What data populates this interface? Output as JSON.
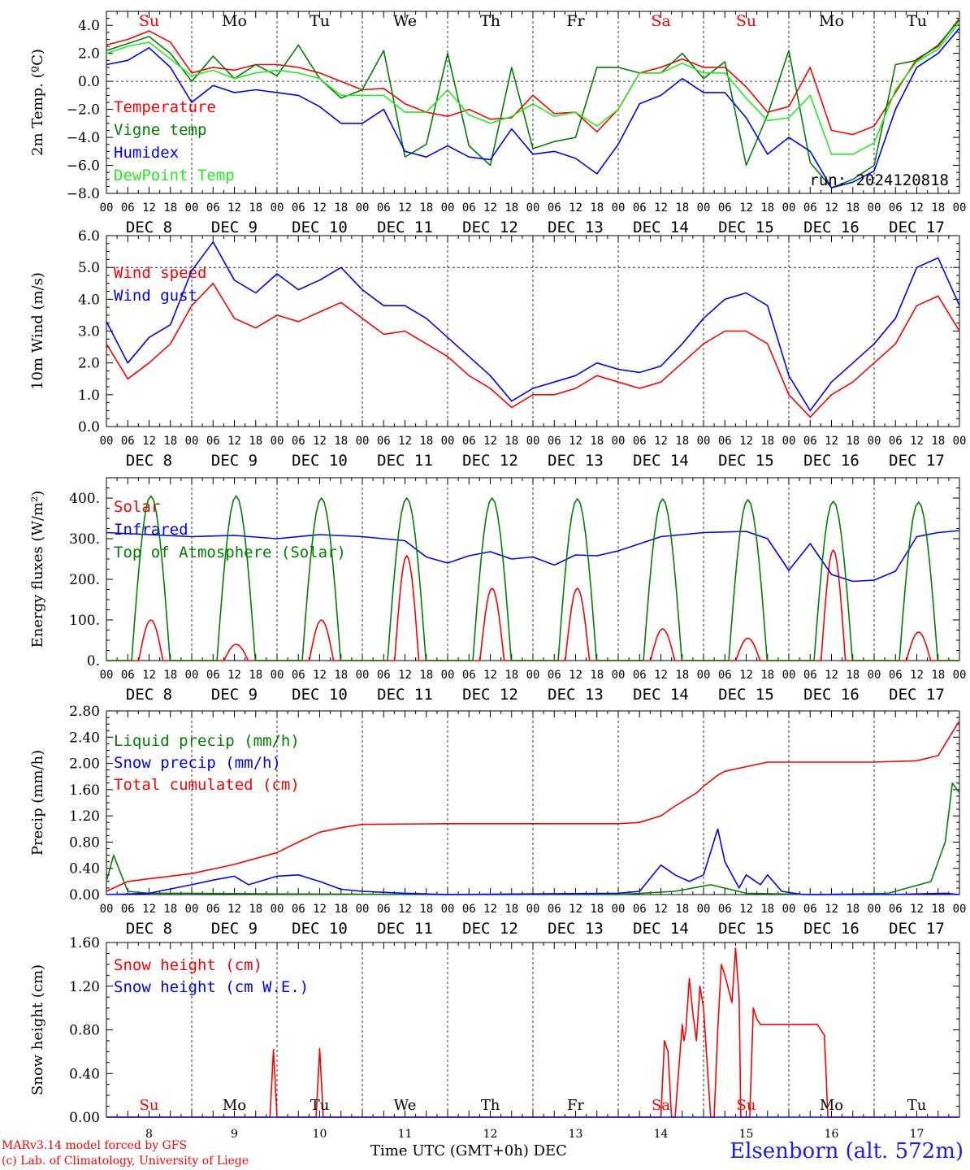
{
  "footer": {
    "credit_line1": "MARv3.14 model forced by GFS",
    "credit_line2": "(c) Lab. of Climatology, University of Liege",
    "xlabel": "Time UTC (GMT+0h) DEC",
    "station": "Elsenborn (alt. 572m)",
    "run": "run: 2024120818"
  },
  "colors": {
    "red": "#ff0000",
    "green": "#008000",
    "blue": "#0000ff",
    "lime": "#22ee22",
    "weekend": "#ff0000",
    "weekday": "#000000"
  },
  "time_axis": {
    "hour_ticks": [
      "00",
      "06",
      "12",
      "18"
    ],
    "days": [
      "DEC  8",
      "DEC  9",
      "DEC 10",
      "DEC 11",
      "DEC 12",
      "DEC 13",
      "DEC 14",
      "DEC 15",
      "DEC 16",
      "DEC 17"
    ],
    "weekdays": [
      "Su",
      "Mo",
      "Tu",
      "We",
      "Th",
      "Fr",
      "Sa",
      "Su",
      "Mo",
      "Tu"
    ],
    "weekend": [
      true,
      false,
      false,
      false,
      false,
      false,
      true,
      true,
      false,
      false
    ],
    "day_numbers": [
      "8",
      "9",
      "10",
      "11",
      "12",
      "13",
      "14",
      "15",
      "16",
      "17"
    ]
  },
  "chart_data": [
    {
      "type": "line",
      "ylabel": "2m Temp. (ºC)",
      "ylim": [
        -8,
        5
      ],
      "yticks": [
        -8,
        -6,
        -4,
        -2,
        0,
        2,
        4
      ],
      "ytick_labels": [
        "−8.0",
        "−6.0",
        "−4.0",
        "−2.0",
        "0.0",
        "2.0",
        "4.0"
      ],
      "dashed_y": [
        0
      ],
      "x_hours": [
        0,
        6,
        12,
        18,
        24,
        30,
        36,
        42,
        48,
        54,
        60,
        66,
        72,
        78,
        84,
        90,
        96,
        102,
        108,
        114,
        120,
        126,
        132,
        138,
        144,
        150,
        156,
        162,
        168,
        174,
        180,
        186,
        192,
        198,
        204,
        210,
        216,
        222,
        228,
        234,
        240
      ],
      "series": [
        {
          "name": "Temperature",
          "color": "red",
          "values": [
            2.6,
            3.0,
            3.6,
            2.8,
            0.6,
            1.0,
            0.8,
            1.2,
            1.2,
            1.0,
            0.6,
            0.0,
            -0.6,
            -0.5,
            -1.6,
            -2.2,
            -2.5,
            -2.0,
            -2.7,
            -2.6,
            -1.0,
            -2.3,
            -2.2,
            -3.6,
            -2.0,
            0.6,
            1.0,
            1.6,
            1.0,
            1.0,
            -0.4,
            -2.2,
            -1.8,
            1.0,
            -3.5,
            -3.8,
            -3.2,
            -0.8,
            1.6,
            2.5,
            4.5
          ]
        },
        {
          "name": "Vigne temp",
          "color": "green",
          "values": [
            2.2,
            2.7,
            3.2,
            2.0,
            0.0,
            1.8,
            0.2,
            1.2,
            0.4,
            2.6,
            0.2,
            -1.2,
            -0.6,
            2.2,
            -5.4,
            -4.5,
            2.0,
            -4.6,
            -6.0,
            1.0,
            -4.8,
            -4.3,
            -4.0,
            1.0,
            1.0,
            0.6,
            0.6,
            2.0,
            0.2,
            1.4,
            -6.0,
            -2.4,
            2.2,
            -5.8,
            -7.6,
            -7.0,
            -6.0,
            1.2,
            1.5,
            2.6,
            4.4
          ]
        },
        {
          "name": "Humidex",
          "color": "blue",
          "values": [
            1.2,
            1.5,
            2.4,
            1.0,
            -1.5,
            -0.3,
            -0.8,
            -0.6,
            -0.8,
            -1.0,
            -1.8,
            -3.0,
            -3.0,
            -2.0,
            -5.0,
            -5.4,
            -4.6,
            -5.4,
            -5.6,
            -3.4,
            -5.2,
            -5.0,
            -5.5,
            -6.6,
            -4.5,
            -1.6,
            -1.0,
            0.2,
            -0.8,
            -0.8,
            -2.6,
            -5.2,
            -4.0,
            -5.0,
            -7.6,
            -7.2,
            -6.4,
            -2.0,
            1.0,
            2.0,
            3.8
          ]
        },
        {
          "name": "DewPoint Temp",
          "color": "lime",
          "values": [
            2.0,
            2.5,
            2.8,
            1.6,
            0.4,
            0.8,
            0.2,
            0.6,
            0.8,
            0.6,
            0.2,
            -1.0,
            -1.0,
            -1.0,
            -2.2,
            -2.2,
            -0.6,
            -2.4,
            -3.0,
            -2.5,
            -1.6,
            -2.5,
            -2.2,
            -3.2,
            -2.0,
            0.6,
            0.6,
            1.3,
            0.6,
            0.6,
            -1.2,
            -2.8,
            -2.6,
            -1.0,
            -5.2,
            -5.2,
            -4.4,
            -0.6,
            1.4,
            2.3,
            4.2
          ]
        }
      ]
    },
    {
      "type": "line",
      "ylabel": "10m Wind (m/s)",
      "ylim": [
        0,
        6
      ],
      "yticks": [
        0,
        1,
        2,
        3,
        4,
        5,
        6
      ],
      "ytick_labels": [
        "0.0",
        "1.0",
        "2.0",
        "3.0",
        "4.0",
        "5.0",
        "6.0"
      ],
      "dashed_y": [
        5
      ],
      "x_hours": [
        0,
        6,
        12,
        18,
        24,
        30,
        36,
        42,
        48,
        54,
        60,
        66,
        72,
        78,
        84,
        90,
        96,
        102,
        108,
        114,
        120,
        126,
        132,
        138,
        144,
        150,
        156,
        162,
        168,
        174,
        180,
        186,
        192,
        198,
        204,
        210,
        216,
        222,
        228,
        234,
        240
      ],
      "series": [
        {
          "name": "Wind speed",
          "color": "red",
          "values": [
            2.6,
            1.5,
            2.0,
            2.6,
            3.8,
            4.5,
            3.4,
            3.1,
            3.5,
            3.3,
            3.6,
            3.9,
            3.4,
            2.9,
            3.0,
            2.6,
            2.2,
            1.6,
            1.2,
            0.6,
            1.0,
            1.0,
            1.2,
            1.6,
            1.4,
            1.2,
            1.4,
            2.0,
            2.6,
            3.0,
            3.0,
            2.6,
            1.0,
            0.3,
            1.0,
            1.4,
            2.0,
            2.6,
            3.8,
            4.1,
            3.0
          ]
        },
        {
          "name": "Wind gust",
          "color": "blue",
          "values": [
            3.3,
            2.0,
            2.8,
            3.2,
            4.9,
            5.8,
            4.6,
            4.2,
            4.8,
            4.3,
            4.6,
            5.0,
            4.3,
            3.8,
            3.8,
            3.4,
            2.8,
            2.2,
            1.6,
            0.8,
            1.2,
            1.4,
            1.6,
            2.0,
            1.8,
            1.7,
            1.9,
            2.6,
            3.4,
            4.0,
            4.2,
            3.8,
            1.6,
            0.5,
            1.4,
            2.0,
            2.6,
            3.4,
            5.0,
            5.3,
            3.8
          ]
        }
      ]
    },
    {
      "type": "line",
      "ylabel": "Energy fluxes (W/m²)",
      "ylim": [
        0,
        450
      ],
      "yticks": [
        0,
        100,
        200,
        300,
        400
      ],
      "ytick_labels": [
        "0.",
        "100.",
        "200.",
        "300.",
        "400."
      ],
      "dashed_y": [],
      "series": [
        {
          "name": "Solar",
          "color": "red",
          "daily_peaks": [
            100,
            40,
            100,
            258,
            178,
            178,
            78,
            55,
            272,
            70
          ]
        },
        {
          "name": "Infrared",
          "color": "blue",
          "x_hours": [
            0,
            12,
            24,
            36,
            48,
            60,
            72,
            84,
            90,
            96,
            102,
            108,
            114,
            120,
            126,
            132,
            138,
            144,
            156,
            168,
            180,
            186,
            192,
            198,
            204,
            210,
            216,
            222,
            228,
            234,
            240
          ],
          "values": [
            315,
            310,
            305,
            308,
            300,
            310,
            305,
            295,
            255,
            240,
            258,
            268,
            250,
            255,
            235,
            260,
            258,
            270,
            305,
            315,
            318,
            300,
            222,
            288,
            212,
            195,
            198,
            220,
            305,
            315,
            320
          ]
        },
        {
          "name": "Top of Atmosphere (Solar)",
          "color": "green",
          "daily_peaks": [
            405,
            405,
            400,
            400,
            400,
            398,
            398,
            396,
            392,
            390
          ]
        }
      ]
    },
    {
      "type": "line",
      "ylabel": "Precip (mm/h)",
      "ylim": [
        0,
        2.8
      ],
      "yticks": [
        0,
        0.4,
        0.8,
        1.2,
        1.6,
        2.0,
        2.4,
        2.8
      ],
      "ytick_labels": [
        "0.00",
        "0.40",
        "0.80",
        "1.20",
        "1.60",
        "2.00",
        "2.40",
        "2.80"
      ],
      "dashed_y": [],
      "series": [
        {
          "name": "Liquid precip (mm/h)",
          "color": "green",
          "x_hours": [
            0,
            2,
            6,
            12,
            24,
            48,
            96,
            144,
            160,
            170,
            180,
            200,
            220,
            232,
            236,
            238,
            240
          ],
          "values": [
            0.2,
            0.6,
            0.05,
            0.02,
            0.02,
            0.01,
            0.0,
            0.0,
            0.05,
            0.15,
            0.02,
            0.0,
            0.02,
            0.2,
            0.8,
            1.7,
            1.55
          ]
        },
        {
          "name": "Snow precip (mm/h)",
          "color": "blue",
          "x_hours": [
            0,
            12,
            24,
            30,
            36,
            40,
            48,
            54,
            60,
            66,
            72,
            84,
            96,
            144,
            150,
            156,
            160,
            164,
            168,
            172,
            174,
            176,
            178,
            180,
            184,
            186,
            190,
            196,
            200,
            220,
            236,
            240
          ],
          "values": [
            0.0,
            0.02,
            0.15,
            0.22,
            0.28,
            0.15,
            0.28,
            0.3,
            0.2,
            0.08,
            0.05,
            0.02,
            0.0,
            0.02,
            0.05,
            0.45,
            0.3,
            0.2,
            0.3,
            1.0,
            0.5,
            0.3,
            0.1,
            0.3,
            0.15,
            0.3,
            0.05,
            0.0,
            0.0,
            0.0,
            0.02,
            0.0
          ]
        },
        {
          "name": "Total cumulated (cm)",
          "color": "red",
          "x_hours": [
            0,
            6,
            12,
            24,
            36,
            48,
            54,
            60,
            66,
            72,
            96,
            120,
            144,
            150,
            156,
            160,
            166,
            168,
            172,
            174,
            180,
            186,
            192,
            216,
            228,
            234,
            240
          ],
          "values": [
            0.05,
            0.2,
            0.24,
            0.32,
            0.46,
            0.64,
            0.8,
            0.95,
            1.02,
            1.07,
            1.08,
            1.08,
            1.08,
            1.1,
            1.2,
            1.35,
            1.55,
            1.65,
            1.82,
            1.88,
            1.95,
            2.02,
            2.02,
            2.02,
            2.04,
            2.12,
            2.65
          ]
        }
      ]
    },
    {
      "type": "line",
      "ylabel": "Snow height (cm)",
      "ylim": [
        0,
        1.6
      ],
      "yticks": [
        0,
        0.4,
        0.8,
        1.2,
        1.6
      ],
      "ytick_labels": [
        "0.00",
        "0.40",
        "0.80",
        "1.20",
        "1.60"
      ],
      "dashed_y": [],
      "series": [
        {
          "name": "Snow height (cm)",
          "color": "red",
          "x_hours": [
            0,
            46,
            47,
            48,
            59,
            60,
            61,
            156,
            157,
            158,
            159,
            160,
            162,
            162.5,
            163,
            164,
            165,
            166,
            167,
            168,
            170,
            171,
            172,
            173,
            174,
            176,
            177,
            178,
            178.5,
            181,
            182,
            183,
            184,
            186,
            200,
            202,
            203,
            240
          ],
          "values": [
            0,
            0,
            0.62,
            0,
            0,
            0.63,
            0,
            0,
            0.7,
            0.6,
            0.0,
            0,
            0.85,
            0.7,
            0.78,
            1.27,
            0.95,
            0.7,
            1.2,
            1.0,
            0.0,
            0.0,
            0.8,
            1.4,
            1.3,
            1.05,
            1.55,
            1.1,
            0.0,
            0.0,
            1.0,
            0.9,
            0.85,
            0.85,
            0.85,
            0.75,
            0,
            0
          ]
        },
        {
          "name": "Snow height (cm W.E.)",
          "color": "blue",
          "x_hours": [
            0,
            240
          ],
          "values": [
            0,
            0
          ]
        }
      ]
    }
  ]
}
